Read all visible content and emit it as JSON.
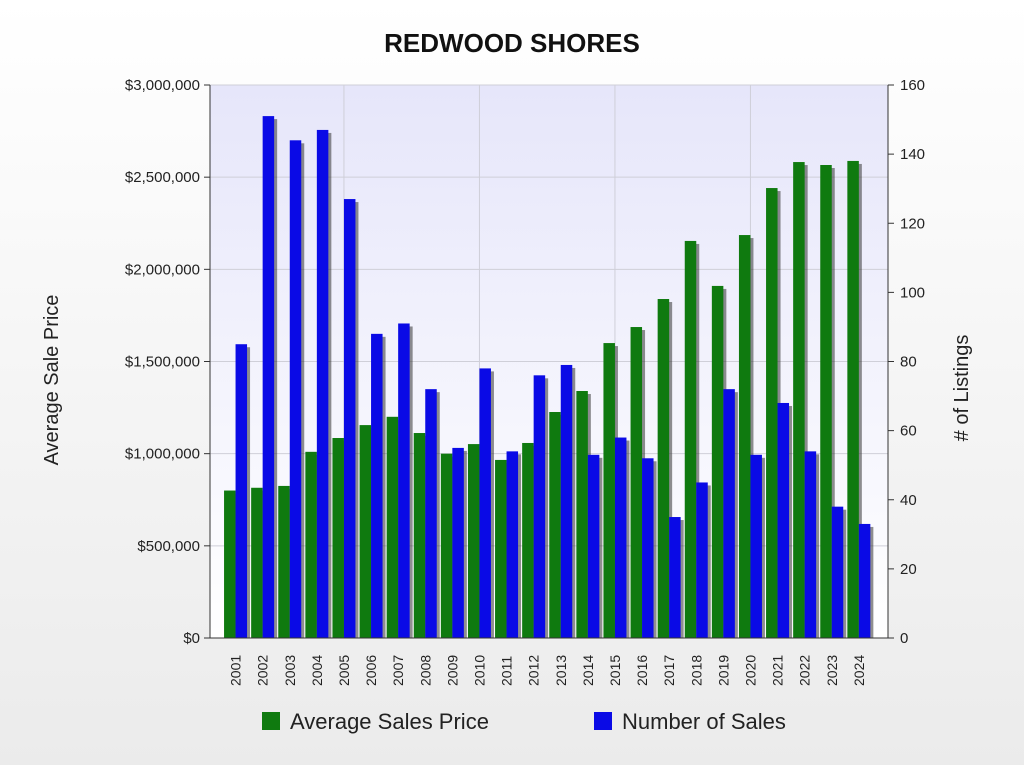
{
  "chart_data": {
    "type": "bar",
    "title": "REDWOOD SHORES",
    "y_label": "Average Sale Price",
    "y2_label": "# of Listings",
    "categories": [
      "2001",
      "2002",
      "2003",
      "2004",
      "2005",
      "2006",
      "2007",
      "2008",
      "2009",
      "2010",
      "2011",
      "2012",
      "2013",
      "2014",
      "2015",
      "2016",
      "2017",
      "2018",
      "2019",
      "2020",
      "2021",
      "2022",
      "2023",
      "2024"
    ],
    "series": [
      {
        "name": "Average Sales Price",
        "color": "#0f7a0f",
        "values": [
          800000,
          815000,
          825000,
          1010000,
          1085000,
          1155000,
          1200000,
          1112000,
          1000000,
          1052000,
          966000,
          1058000,
          1226000,
          1340000,
          1600000,
          1687000,
          1839000,
          2154000,
          1910000,
          2186000,
          2441000,
          2582000,
          2566000,
          2588000
        ]
      },
      {
        "name": "Number of Sales",
        "color": "#0a0ae6",
        "axis": "y2",
        "values": [
          85,
          151,
          144,
          147,
          127,
          88,
          91,
          72,
          55,
          78,
          54,
          76,
          79,
          53,
          58,
          52,
          35,
          45,
          72,
          53,
          68,
          54,
          38,
          33
        ]
      }
    ],
    "ylim": [
      0,
      3000000
    ],
    "yticks": [
      {
        "value": 0,
        "label": "$0"
      },
      {
        "value": 500000,
        "label": "$500,000"
      },
      {
        "value": 1000000,
        "label": "$1,000,000"
      },
      {
        "value": 1500000,
        "label": "$1,500,000"
      },
      {
        "value": 2000000,
        "label": "$2,000,000"
      },
      {
        "value": 2500000,
        "label": "$2,500,000"
      },
      {
        "value": 3000000,
        "label": "$3,000,000"
      }
    ],
    "y2lim": [
      0,
      160
    ],
    "y2ticks": [
      0,
      20,
      40,
      60,
      80,
      100,
      120,
      140,
      160
    ],
    "grid": true,
    "legend": "bottom"
  }
}
